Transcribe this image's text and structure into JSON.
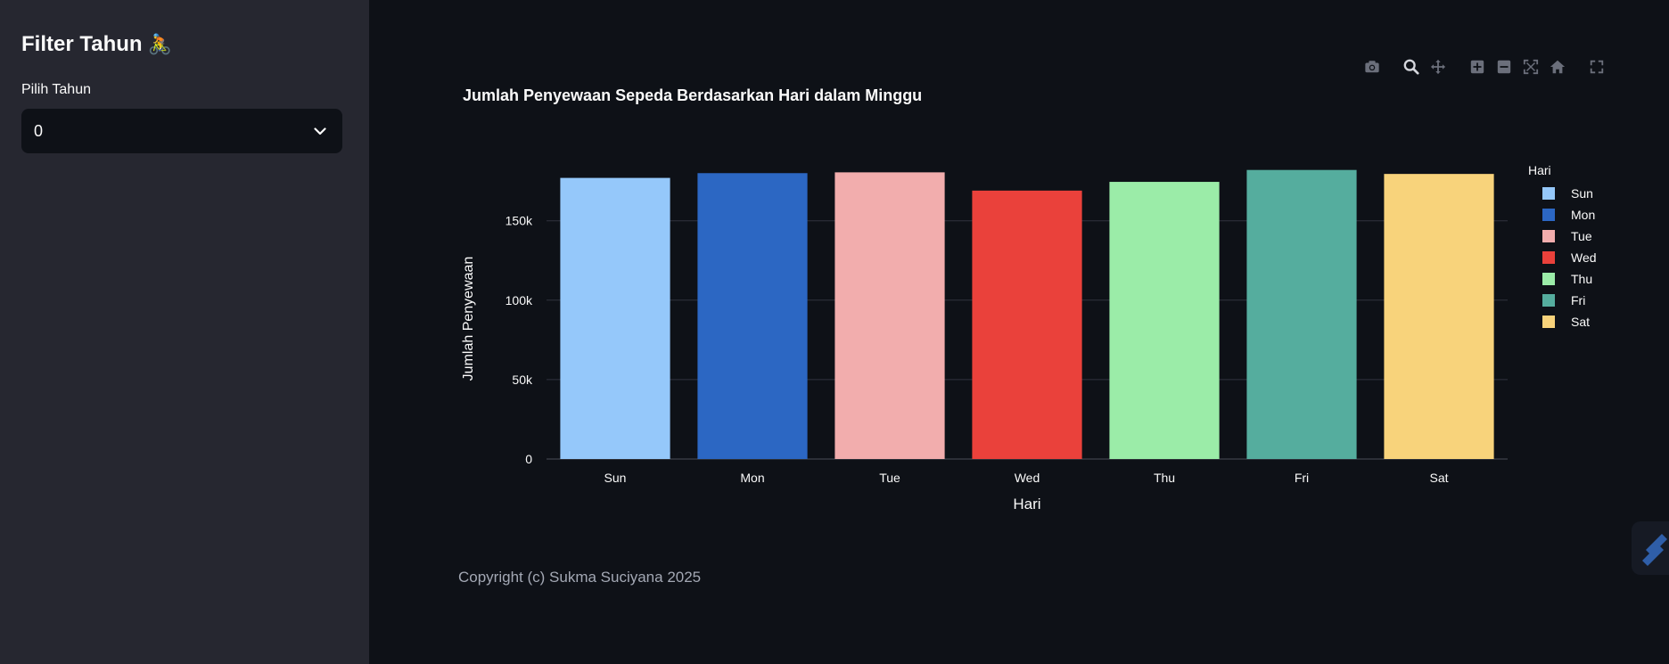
{
  "sidebar": {
    "title": "Filter Tahun",
    "title_emoji": "🚴",
    "select_label": "Pilih Tahun",
    "select_value": "0"
  },
  "modebar": {
    "icons": [
      "camera-icon",
      "zoom-icon",
      "pan-icon",
      "zoom-in-icon",
      "zoom-out-icon",
      "autoscale-icon",
      "home-icon",
      "fullscreen-icon"
    ]
  },
  "footer": {
    "copyright": "Copyright (c) Sukma Suciyana 2025"
  },
  "chart_data": {
    "type": "bar",
    "title": "Jumlah Penyewaan Sepeda Berdasarkan Hari dalam Minggu",
    "xlabel": "Hari",
    "ylabel": "Jumlah Penyewaan",
    "categories": [
      "Sun",
      "Mon",
      "Tue",
      "Wed",
      "Thu",
      "Fri",
      "Sat"
    ],
    "values": [
      177000,
      180000,
      180500,
      169000,
      174500,
      182000,
      179500
    ],
    "colors": [
      "#95c8fa",
      "#2c67c3",
      "#f2adad",
      "#ea413b",
      "#9beca8",
      "#55ad9e",
      "#f8d37b"
    ],
    "yticks": [
      0,
      50000,
      100000,
      150000
    ],
    "ytick_labels": [
      "0",
      "50k",
      "100k",
      "150k"
    ],
    "ylim": [
      0,
      188000
    ],
    "grid": true,
    "legend": {
      "title": "Hari",
      "position": "right",
      "entries": [
        "Sun",
        "Mon",
        "Tue",
        "Wed",
        "Thu",
        "Fri",
        "Sat"
      ]
    },
    "colors_theme": {
      "background": "#0e1117",
      "grid": "#31333f",
      "text": "#fafafa"
    }
  }
}
